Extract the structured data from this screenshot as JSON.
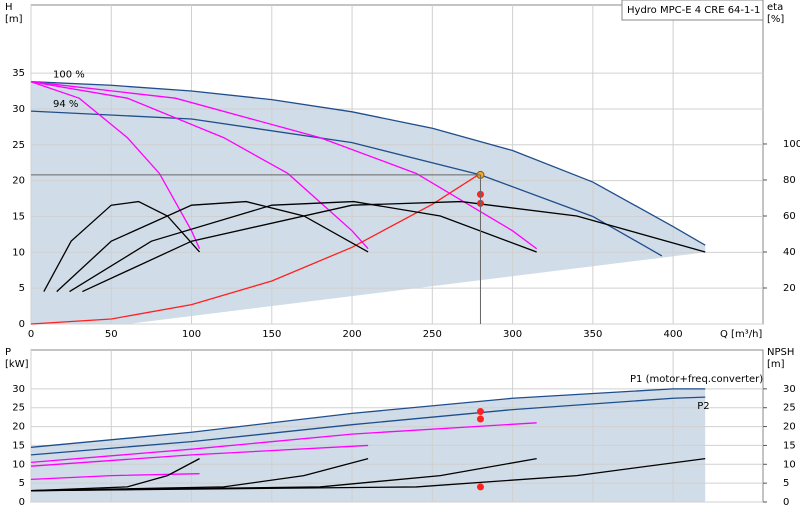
{
  "chart_data": [
    {
      "type": "line",
      "title": "Hydro MPC-E 4 CRE 64-1-1",
      "ylabel": [
        "H",
        "[m]"
      ],
      "y2label": [
        "eta",
        "[%]"
      ],
      "xlabel": "Q [m³/h]",
      "xlim": [
        0,
        456
      ],
      "ylim": [
        0,
        44.5
      ],
      "y2lim": [
        0,
        177.2
      ],
      "xticks": [
        0,
        50,
        100,
        150,
        200,
        250,
        300,
        350,
        400
      ],
      "yticks": [
        0,
        5,
        10,
        15,
        20,
        25,
        30,
        35
      ],
      "y2ticks": [
        20,
        40,
        60,
        80,
        100
      ],
      "grid": true,
      "series": [
        {
          "name": "100 %",
          "color": "#1f4e8c",
          "x": [
            0,
            50,
            100,
            150,
            200,
            250,
            300,
            350,
            400,
            420
          ],
          "values": [
            33.8,
            33.3,
            32.5,
            31.3,
            29.6,
            27.3,
            24.2,
            19.8,
            13.6,
            11
          ]
        },
        {
          "name": "94 %",
          "color": "#1f4e8c",
          "x": [
            0,
            100,
            200,
            280,
            350,
            393
          ],
          "values": [
            29.7,
            28.6,
            25.3,
            20.8,
            15,
            9.5
          ]
        },
        {
          "color": "#ff00ff",
          "x": [
            0,
            30,
            60,
            80,
            100,
            105
          ],
          "values": [
            33.8,
            31.5,
            26,
            21,
            13,
            10.5
          ]
        },
        {
          "color": "#ff00ff",
          "x": [
            0,
            60,
            120,
            160,
            200,
            210
          ],
          "values": [
            33.8,
            31.5,
            26,
            21,
            13,
            10.5
          ]
        },
        {
          "color": "#ff00ff",
          "x": [
            0,
            90,
            180,
            240,
            300,
            315
          ],
          "values": [
            33.8,
            31.5,
            26,
            21,
            13,
            10.5
          ]
        },
        {
          "color": "#ff2020",
          "x": [
            0,
            50,
            100,
            150,
            200,
            250,
            280
          ],
          "values": [
            0,
            0.7,
            2.7,
            6,
            10.7,
            16.7,
            21
          ]
        },
        {
          "color": "#000000",
          "axis": "y2",
          "x": [
            8,
            25,
            50,
            67,
            85,
            105
          ],
          "values": [
            18,
            46,
            66,
            68,
            60,
            40
          ]
        },
        {
          "color": "#000000",
          "axis": "y2",
          "x": [
            16,
            50,
            100,
            134,
            170,
            210
          ],
          "values": [
            18,
            46,
            66,
            68,
            60,
            40
          ]
        },
        {
          "color": "#000000",
          "axis": "y2",
          "x": [
            24,
            75,
            150,
            201,
            255,
            315
          ],
          "values": [
            18,
            46,
            66,
            68,
            60,
            40
          ]
        },
        {
          "color": "#000000",
          "axis": "y2",
          "x": [
            32,
            100,
            200,
            268,
            340,
            420
          ],
          "values": [
            18,
            46,
            66,
            68,
            60,
            40
          ]
        },
        {
          "color": "#ff2020",
          "axis": "y2",
          "marker": true,
          "x": [
            280,
            280
          ],
          "values": [
            72,
            67
          ]
        },
        {
          "color": "#f5a623",
          "marker": true,
          "crosshair": true,
          "x": [
            280
          ],
          "values": [
            20.8
          ]
        }
      ]
    },
    {
      "type": "line",
      "ylabel": [
        "P",
        "[kW]"
      ],
      "y2label": [
        "NPSH",
        "[m]"
      ],
      "xlim": [
        0,
        456
      ],
      "ylim": [
        0,
        40.3
      ],
      "y2lim": [
        0,
        40.3
      ],
      "yticks": [
        0,
        5,
        10,
        15,
        20,
        25,
        30
      ],
      "y2ticks": [
        0,
        5,
        10,
        15,
        20,
        25,
        30
      ],
      "grid": true,
      "series": [
        {
          "name": "P1 (motor+freq.converter)",
          "color": "#1f4e8c",
          "x": [
            0,
            100,
            200,
            300,
            400,
            420
          ],
          "values": [
            14.5,
            18.5,
            23.5,
            27.5,
            30,
            30
          ]
        },
        {
          "name": "P2",
          "color": "#1f4e8c",
          "x": [
            0,
            100,
            200,
            300,
            400,
            420
          ],
          "values": [
            12.5,
            16,
            20.5,
            24.5,
            27.5,
            27.8
          ]
        },
        {
          "color": "#ff00ff",
          "x": [
            0,
            100,
            200,
            315
          ],
          "values": [
            10.5,
            14,
            18,
            21
          ]
        },
        {
          "color": "#ff00ff",
          "x": [
            0,
            100,
            210
          ],
          "values": [
            9.5,
            12.5,
            15
          ]
        },
        {
          "color": "#ff00ff",
          "x": [
            0,
            50,
            105
          ],
          "values": [
            6,
            7,
            7.5
          ]
        },
        {
          "color": "#000000",
          "axis": "y2",
          "x": [
            0,
            60,
            85,
            105
          ],
          "values": [
            3,
            4,
            7,
            11.5
          ]
        },
        {
          "color": "#000000",
          "axis": "y2",
          "x": [
            0,
            120,
            170,
            210
          ],
          "values": [
            3,
            4,
            7,
            11.5
          ]
        },
        {
          "color": "#000000",
          "axis": "y2",
          "x": [
            0,
            180,
            255,
            315
          ],
          "values": [
            3,
            4,
            7,
            11.5
          ]
        },
        {
          "color": "#000000",
          "axis": "y2",
          "x": [
            0,
            240,
            340,
            420
          ],
          "values": [
            3,
            4,
            7,
            11.5
          ]
        },
        {
          "color": "#ff2020",
          "marker": true,
          "x": [
            280,
            280,
            280
          ],
          "values": [
            24,
            22,
            4
          ]
        }
      ]
    }
  ]
}
